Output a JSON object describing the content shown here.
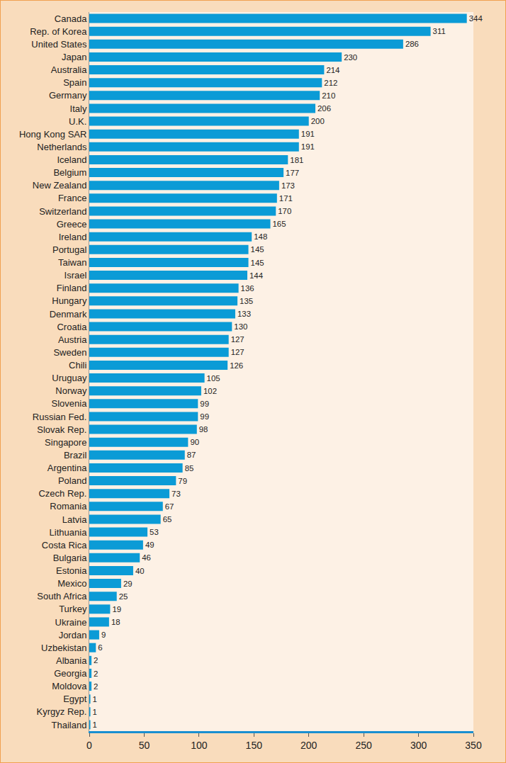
{
  "chart_data": {
    "type": "bar",
    "orientation": "horizontal",
    "categories": [
      "Canada",
      "Rep. of Korea",
      "United States",
      "Japan",
      "Australia",
      "Spain",
      "Germany",
      "Italy",
      "U.K.",
      "Hong Kong SAR",
      "Netherlands",
      "Iceland",
      "Belgium",
      "New Zealand",
      "France",
      "Switzerland",
      "Greece",
      "Ireland",
      "Portugal",
      "Taiwan",
      "Israel",
      "Finland",
      "Hungary",
      "Denmark",
      "Croatia",
      "Austria",
      "Sweden",
      "Chili",
      "Uruguay",
      "Norway",
      "Slovenia",
      "Russian Fed.",
      "Slovak Rep.",
      "Singapore",
      "Brazil",
      "Argentina",
      "Poland",
      "Czech Rep.",
      "Romania",
      "Latvia",
      "Lithuania",
      "Costa Rica",
      "Bulgaria",
      "Estonia",
      "Mexico",
      "South Africa",
      "Turkey",
      "Ukraine",
      "Jordan",
      "Uzbekistan",
      "Albania",
      "Georgia",
      "Moldova",
      "Egypt",
      "Kyrgyz Rep.",
      "Thailand"
    ],
    "values": [
      344,
      311,
      286,
      230,
      214,
      212,
      210,
      206,
      200,
      191,
      191,
      181,
      177,
      173,
      171,
      170,
      165,
      148,
      145,
      145,
      144,
      136,
      135,
      133,
      130,
      127,
      127,
      126,
      105,
      102,
      99,
      99,
      98,
      90,
      87,
      85,
      79,
      73,
      67,
      65,
      53,
      49,
      46,
      40,
      29,
      25,
      19,
      18,
      9,
      6,
      2,
      2,
      2,
      1,
      1,
      1
    ],
    "color": "#0b9bd6",
    "xlim": [
      0,
      350
    ],
    "xticks": [
      0,
      50,
      100,
      150,
      200,
      250,
      300,
      350
    ],
    "grid": false,
    "data_labels": true
  }
}
